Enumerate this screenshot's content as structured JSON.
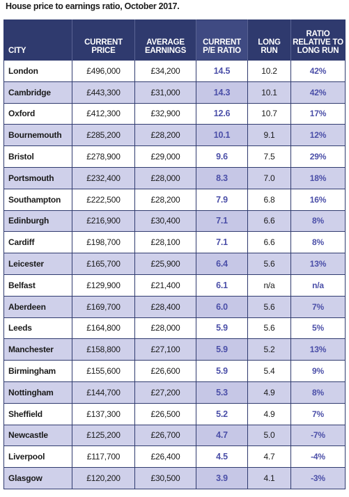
{
  "caption": "House price to earnings ratio, October 2017.",
  "chart_data": {
    "type": "table",
    "title": "House price to earnings ratio, October 2017.",
    "columns": [
      "CITY",
      "CURRENT\nPRICE",
      "AVERAGE\nEARNINGS",
      "CURRENT\nP/E RATIO",
      "LONG\nRUN",
      "RATIO\nRELATIVE TO\nLONG RUN"
    ],
    "rows": [
      [
        "London",
        "£496,000",
        "£34,200",
        "14.5",
        "10.2",
        "42%"
      ],
      [
        "Cambridge",
        "£443,300",
        "£31,000",
        "14.3",
        "10.1",
        "42%"
      ],
      [
        "Oxford",
        "£412,300",
        "£32,900",
        "12.6",
        "10.7",
        "17%"
      ],
      [
        "Bournemouth",
        "£285,200",
        "£28,200",
        "10.1",
        "9.1",
        "12%"
      ],
      [
        "Bristol",
        "£278,900",
        "£29,000",
        "9.6",
        "7.5",
        "29%"
      ],
      [
        "Portsmouth",
        "£232,400",
        "£28,000",
        "8.3",
        "7.0",
        "18%"
      ],
      [
        "Southampton",
        "£222,500",
        "£28,200",
        "7.9",
        "6.8",
        "16%"
      ],
      [
        "Edinburgh",
        "£216,900",
        "£30,400",
        "7.1",
        "6.6",
        "8%"
      ],
      [
        "Cardiff",
        "£198,700",
        "£28,100",
        "7.1",
        "6.6",
        "8%"
      ],
      [
        "Leicester",
        "£165,700",
        "£25,900",
        "6.4",
        "5.6",
        "13%"
      ],
      [
        "Belfast",
        "£129,900",
        "£21,400",
        "6.1",
        "n/a",
        "n/a"
      ],
      [
        "Aberdeen",
        "£169,700",
        "£28,400",
        "6.0",
        "5.6",
        "7%"
      ],
      [
        "Leeds",
        "£164,800",
        "£28,000",
        "5.9",
        "5.6",
        "5%"
      ],
      [
        "Manchester",
        "£158,800",
        "£27,100",
        "5.9",
        "5.2",
        "13%"
      ],
      [
        "Birmingham",
        "£155,600",
        "£26,600",
        "5.9",
        "5.4",
        "9%"
      ],
      [
        "Nottingham",
        "£144,700",
        "£27,200",
        "5.3",
        "4.9",
        "8%"
      ],
      [
        "Sheffield",
        "£137,300",
        "£26,500",
        "5.2",
        "4.9",
        "7%"
      ],
      [
        "Newcastle",
        "£125,200",
        "£26,700",
        "4.7",
        "5.0",
        "-7%"
      ],
      [
        "Liverpool",
        "£117,700",
        "£26,400",
        "4.5",
        "4.7",
        "-4%"
      ],
      [
        "Glasgow",
        "£120,200",
        "£30,500",
        "3.9",
        "4.1",
        "-3%"
      ]
    ]
  },
  "colors": {
    "header_bg": "#2f3a6e",
    "stripe": "#cfd0ea",
    "accent_text": "#4b4fa8"
  }
}
